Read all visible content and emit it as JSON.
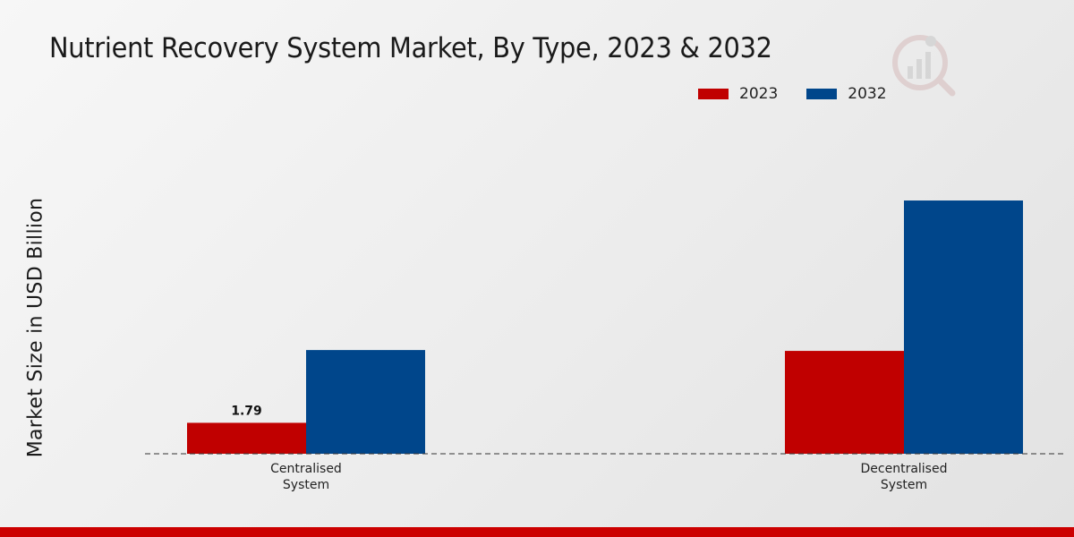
{
  "chart_data": {
    "type": "bar",
    "title": "Nutrient Recovery System Market, By Type, 2023 & 2032",
    "ylabel": "Market Size in USD Billion",
    "xlabel": "",
    "categories": [
      "Centralised\nSystem",
      "Decentralised\nSystem"
    ],
    "series": [
      {
        "name": "2023",
        "color": "#c00000",
        "values": [
          1.79,
          5.95
        ]
      },
      {
        "name": "2032",
        "color": "#00468b",
        "values": [
          6.0,
          14.65
        ]
      }
    ],
    "data_labels": [
      {
        "series": 0,
        "index": 0,
        "text": "1.79"
      }
    ],
    "ylim": [
      0,
      19
    ],
    "grid": false,
    "legend": "top-right"
  },
  "colors": {
    "accent": "#cc0000",
    "series_2023": "#c00000",
    "series_2032": "#00468b"
  }
}
